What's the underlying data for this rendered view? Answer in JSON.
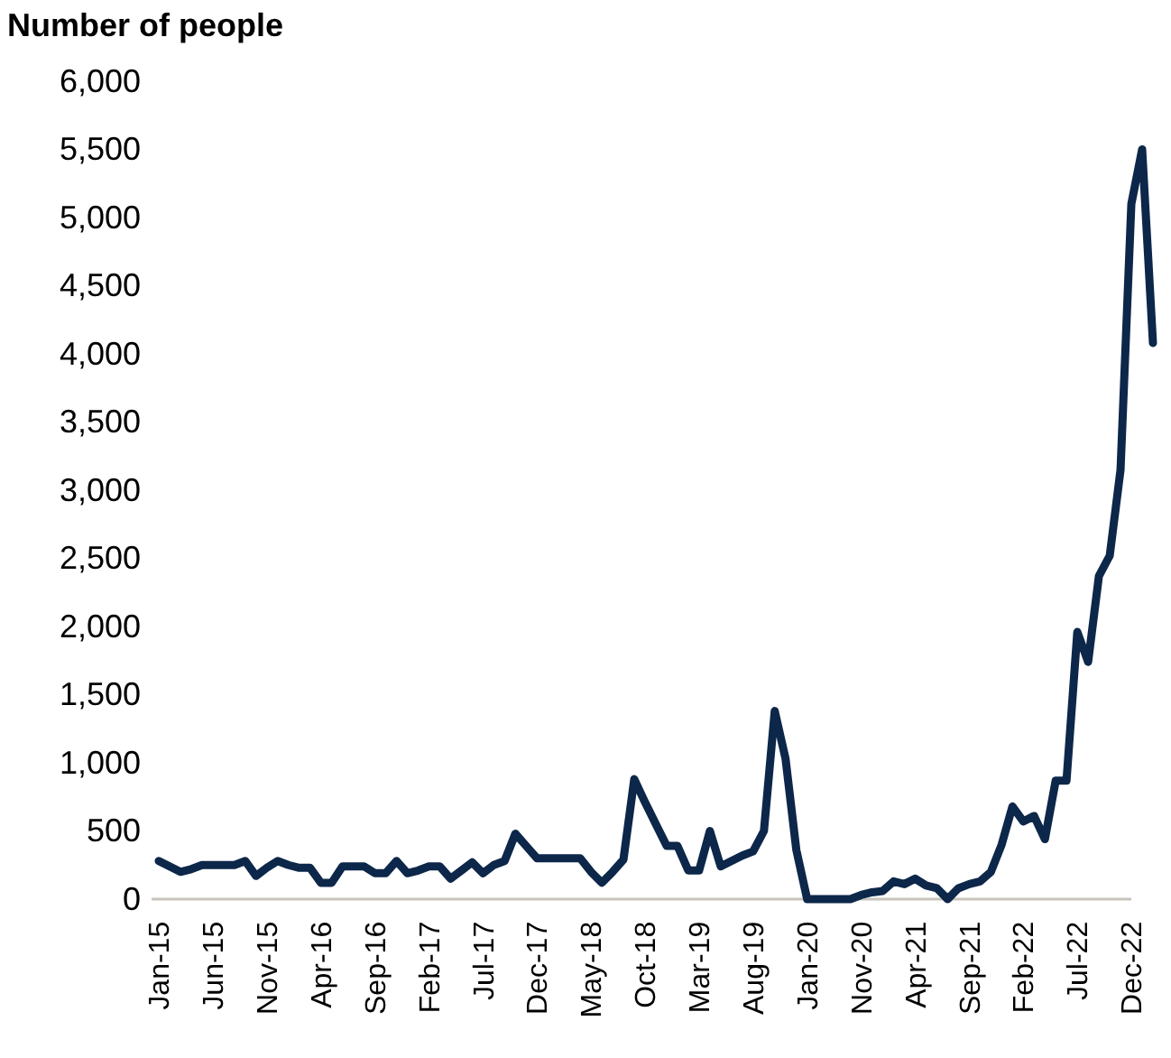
{
  "chart_data": {
    "type": "line",
    "ylabel": "Number of people",
    "categories": [
      "Jan-15",
      null,
      null,
      null,
      null,
      "Jun-15",
      null,
      null,
      null,
      null,
      "Nov-15",
      null,
      null,
      null,
      null,
      "Apr-16",
      null,
      null,
      null,
      null,
      "Sep-16",
      null,
      null,
      null,
      null,
      "Feb-17",
      null,
      null,
      null,
      null,
      "Jul-17",
      null,
      null,
      null,
      null,
      "Dec-17",
      null,
      null,
      null,
      null,
      "May-18",
      null,
      null,
      null,
      null,
      "Oct-18",
      null,
      null,
      null,
      null,
      "Mar-19",
      null,
      null,
      null,
      null,
      "Aug-19",
      null,
      null,
      null,
      null,
      "Jan-20",
      null,
      null,
      null,
      null,
      "Nov-20",
      null,
      null,
      null,
      null,
      "Apr-21",
      null,
      null,
      null,
      null,
      "Sep-21",
      null,
      null,
      null,
      null,
      "Feb-22",
      null,
      null,
      null,
      null,
      "Jul-22",
      null,
      null,
      null,
      null,
      "Dec-22",
      null,
      null
    ],
    "series": [
      {
        "color": "#0c2749",
        "values": [
          280,
          240,
          200,
          220,
          250,
          250,
          250,
          250,
          280,
          170,
          230,
          280,
          250,
          230,
          230,
          120,
          120,
          240,
          240,
          240,
          190,
          190,
          280,
          190,
          210,
          240,
          240,
          150,
          210,
          270,
          190,
          250,
          280,
          480,
          390,
          300,
          300,
          300,
          300,
          300,
          200,
          120,
          200,
          290,
          880,
          710,
          550,
          390,
          390,
          210,
          210,
          500,
          240,
          280,
          320,
          350,
          500,
          1380,
          1030,
          360,
          0,
          0,
          0,
          0,
          0,
          30,
          50,
          60,
          130,
          110,
          150,
          100,
          80,
          0,
          80,
          110,
          130,
          200,
          400,
          680,
          570,
          610,
          440,
          870,
          870,
          1960,
          1740,
          2370,
          2520,
          3150,
          5100,
          5500,
          4080
        ]
      }
    ],
    "ylim": [
      0,
      6000
    ],
    "yticks": [
      {
        "value": 0,
        "label": "0"
      },
      {
        "value": 500,
        "label": "500"
      },
      {
        "value": 1000,
        "label": "1,000"
      },
      {
        "value": 1500,
        "label": "1,500"
      },
      {
        "value": 2000,
        "label": "2,000"
      },
      {
        "value": 2500,
        "label": "2,500"
      },
      {
        "value": 3000,
        "label": "3,000"
      },
      {
        "value": 3500,
        "label": "3,500"
      },
      {
        "value": 4000,
        "label": "4,000"
      },
      {
        "value": 4500,
        "label": "4,500"
      },
      {
        "value": 5000,
        "label": "5,000"
      },
      {
        "value": 5500,
        "label": "5,500"
      },
      {
        "value": 6000,
        "label": "6,000"
      }
    ],
    "marker": "none",
    "line_style": "solid"
  }
}
